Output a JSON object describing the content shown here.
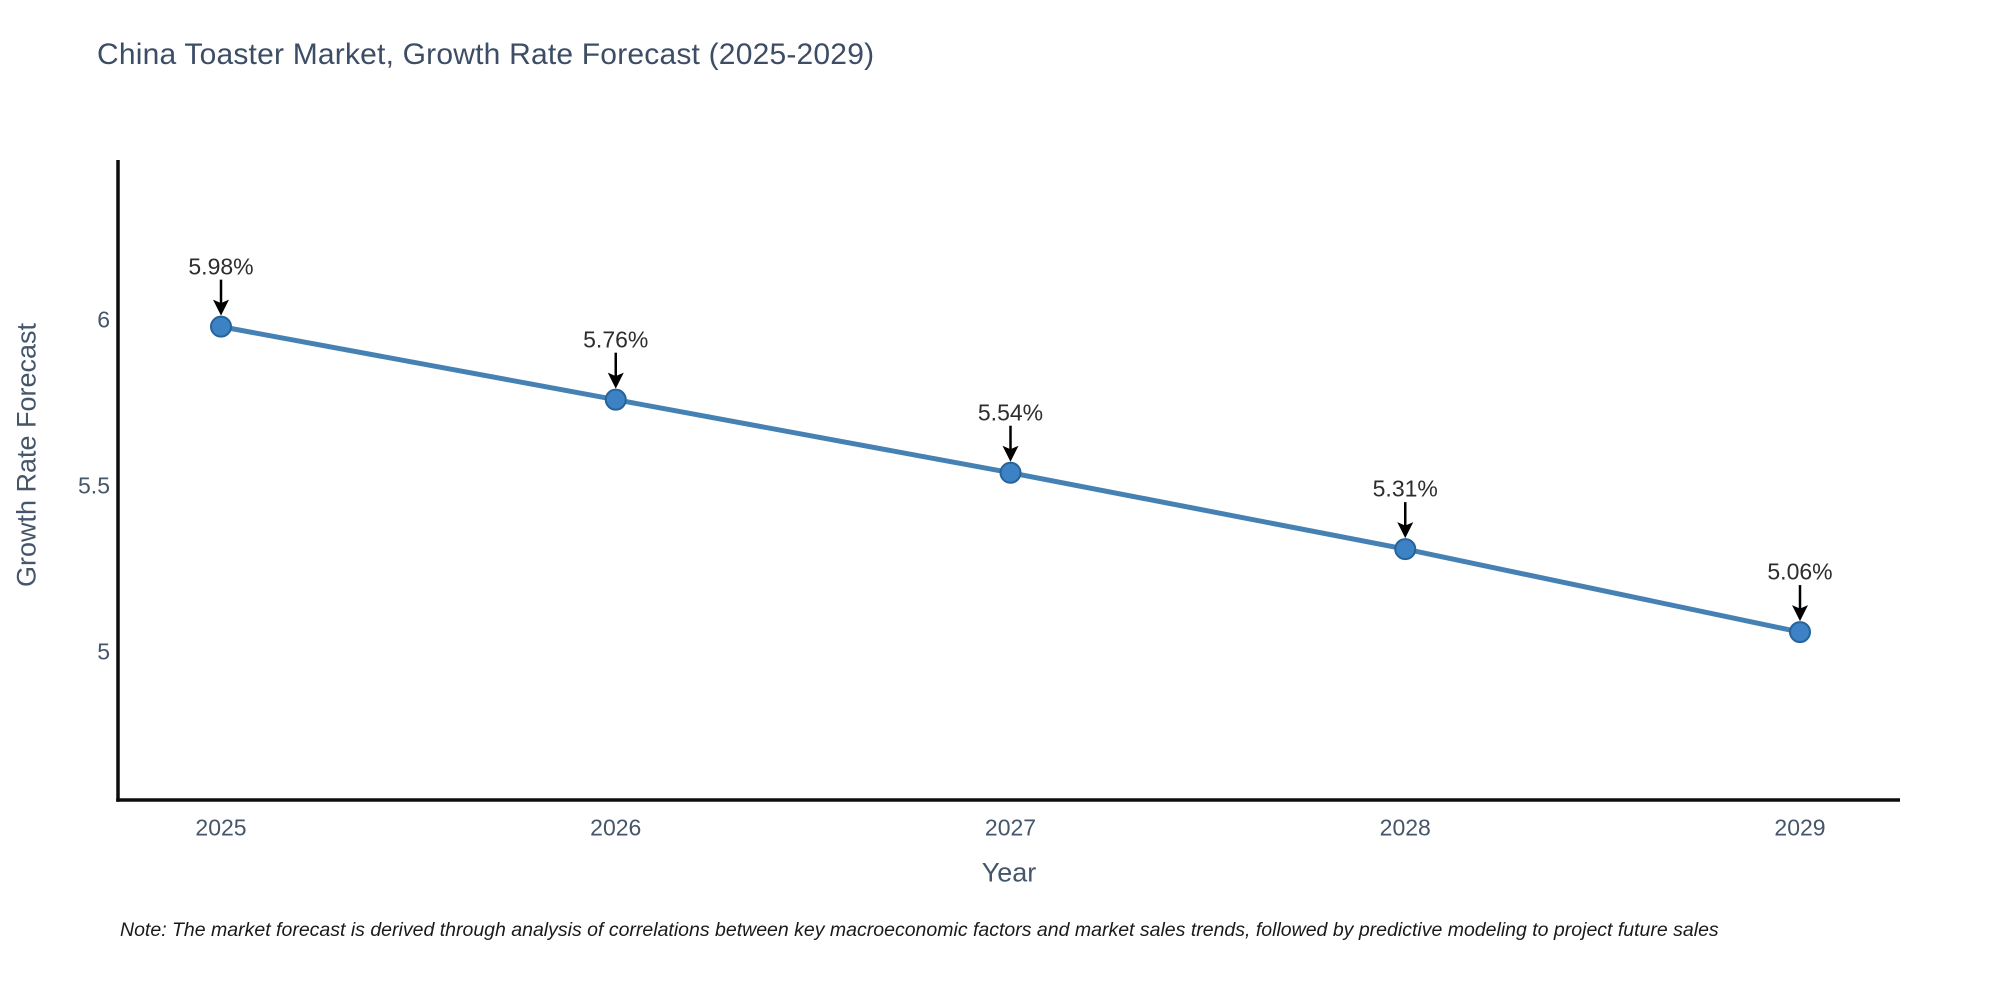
{
  "title": "China Toaster Market, Growth Rate Forecast (2025-2029)",
  "note": "Note: The market forecast is derived through analysis of correlations between key macroeconomic factors and market sales trends, followed by predictive modeling to project future sales",
  "chart_data": {
    "type": "line",
    "x": [
      2025,
      2026,
      2027,
      2028,
      2029
    ],
    "values": [
      5.98,
      5.76,
      5.54,
      5.31,
      5.06
    ],
    "point_labels": [
      "5.98%",
      "5.76%",
      "5.54%",
      "5.31%",
      "5.06%"
    ],
    "series_name": "Growth Rate Forecast",
    "xlabel": "Year",
    "ylabel": "Growth Rate Forecast",
    "yticks": {
      "values": [
        6,
        5.5,
        5
      ],
      "labels": [
        "6",
        "5.5",
        "5"
      ]
    },
    "ylim": [
      4.55,
      6.48
    ],
    "grid": false,
    "legend": "none",
    "annotations": "each point labeled with percent value and a downward black arrow",
    "line_color": "#4681b4",
    "marker_color": "#3d82c4",
    "marker_edge_color": "#25639b",
    "axis_color": "#0d0d0d",
    "annotation_arrow_color": "#000000",
    "title_color": "#3d4d66",
    "tick_color": "#45556a"
  }
}
